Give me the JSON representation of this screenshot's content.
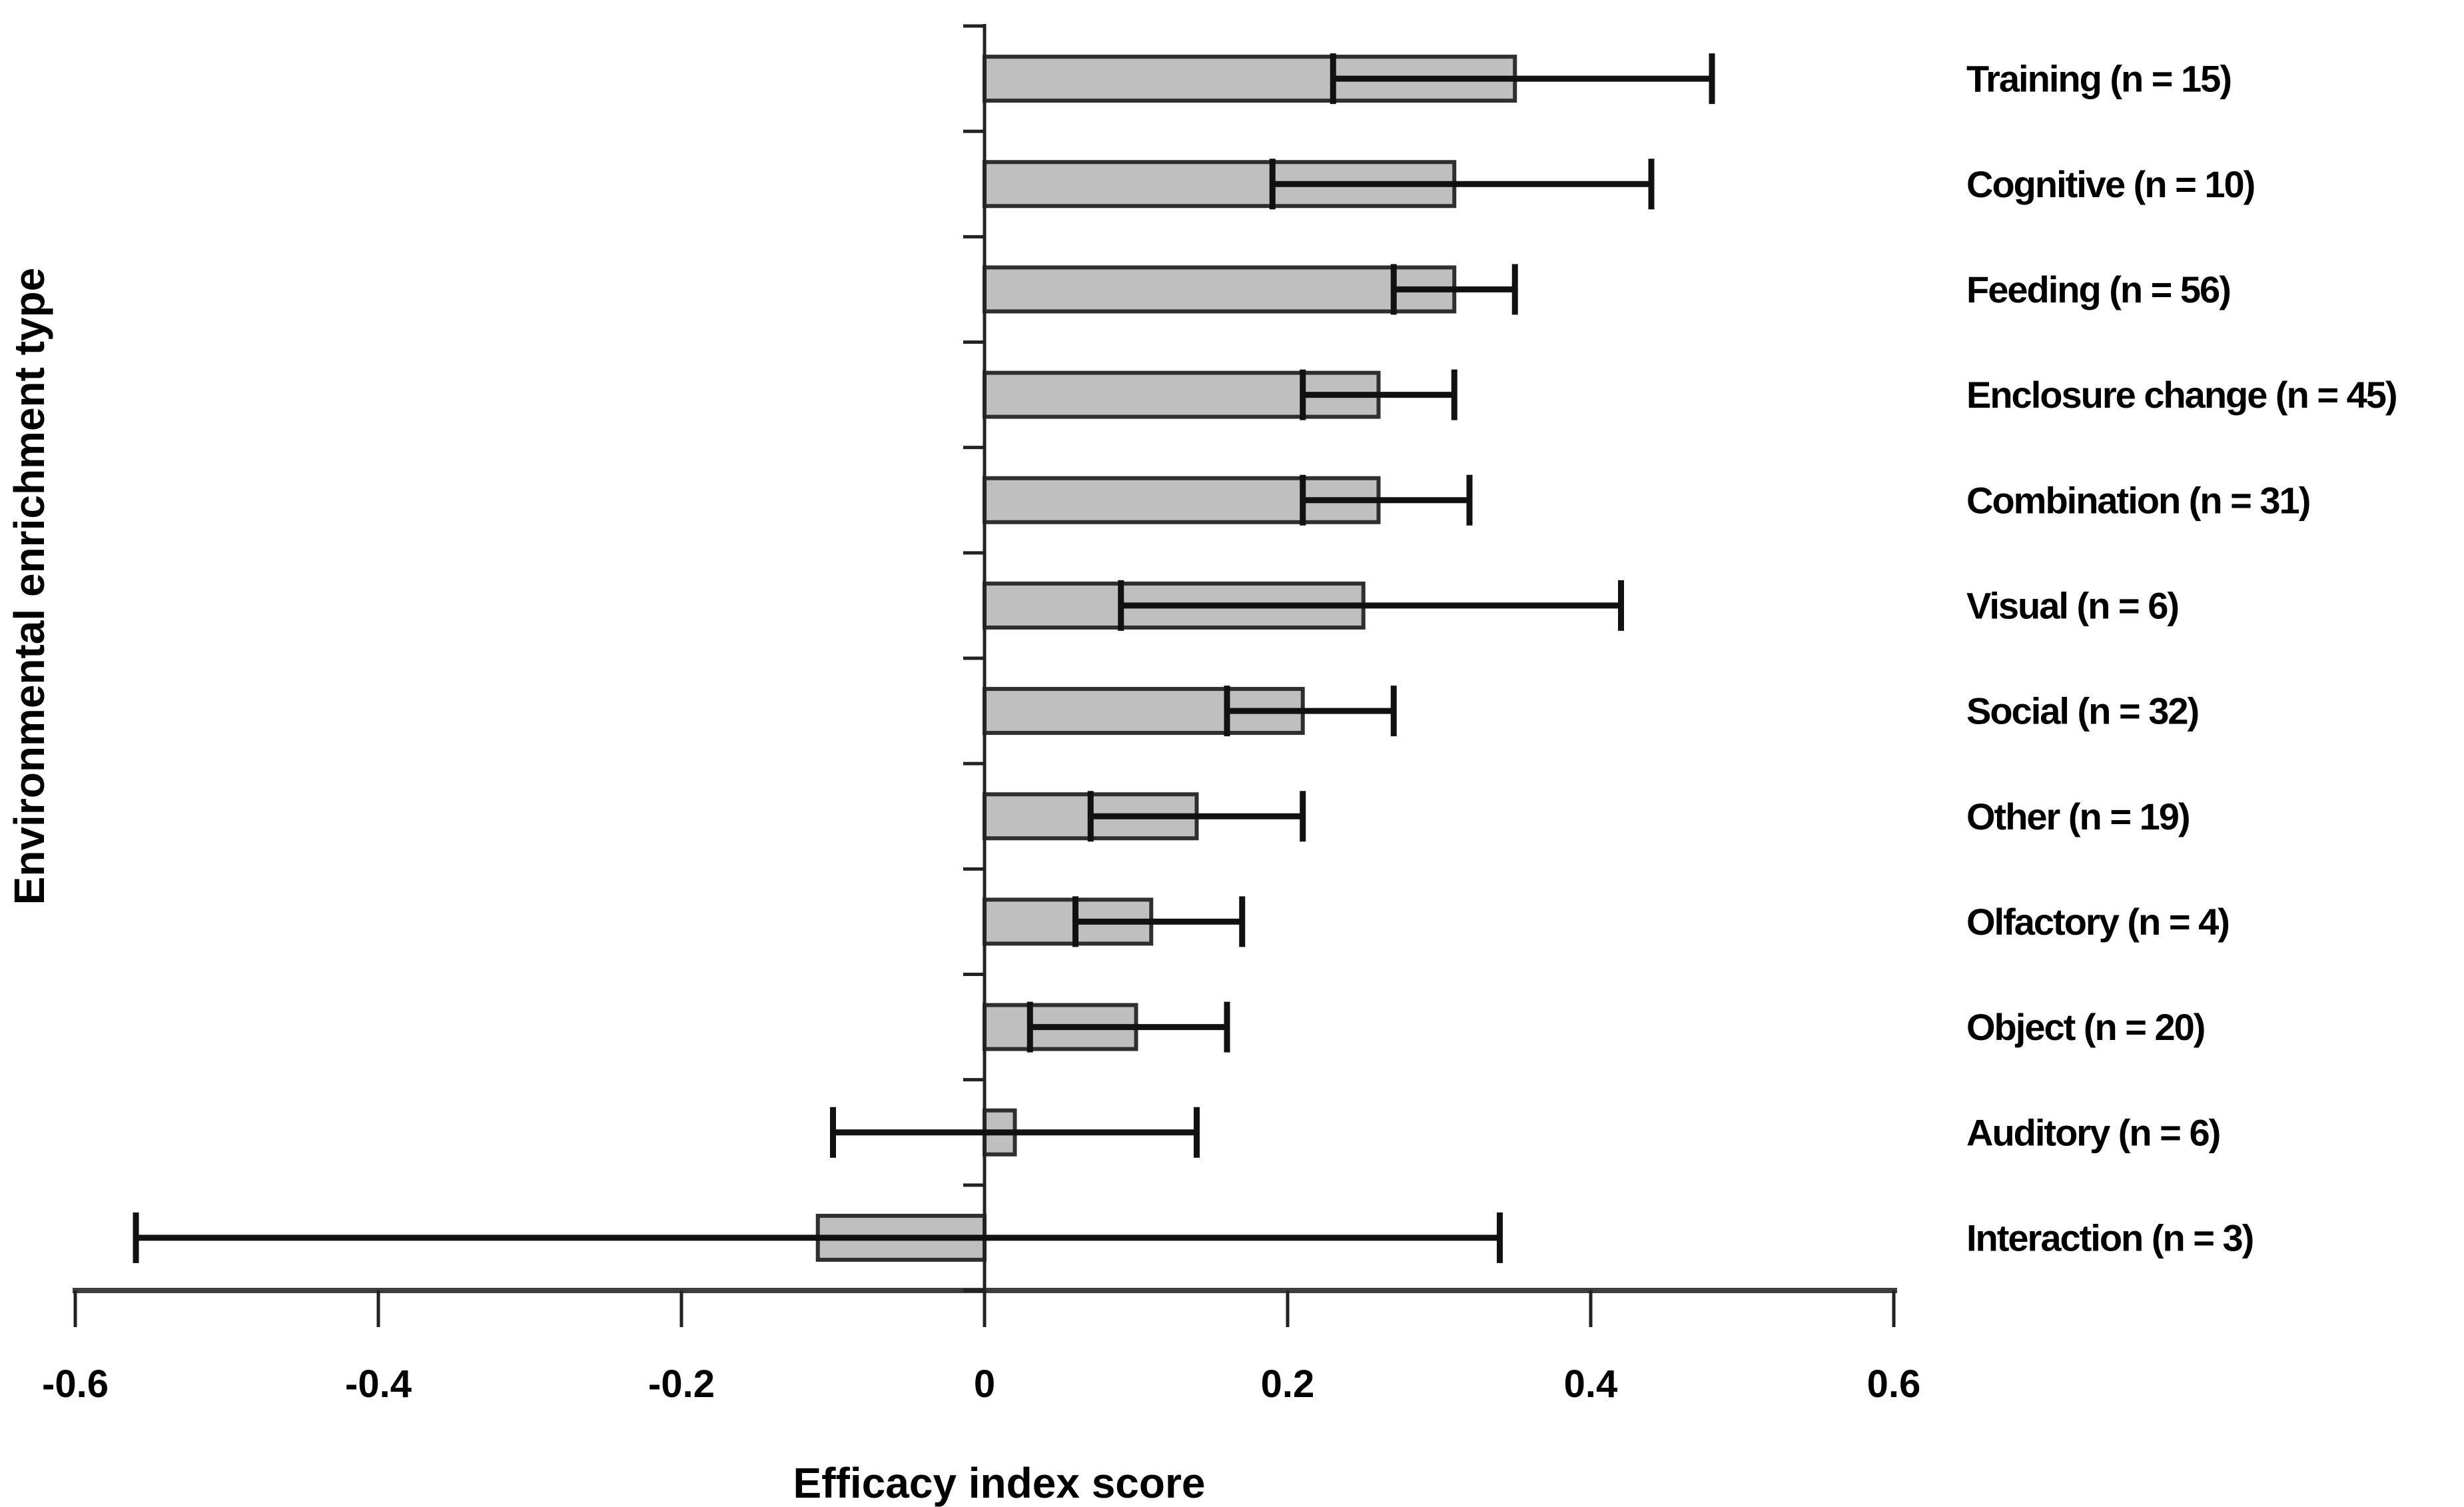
{
  "figure": {
    "background": "#ffffff",
    "xlabel": "Efficacy index score",
    "ylabel": "Environmental enrichment type"
  },
  "chart_data": {
    "type": "bar",
    "orientation": "horizontal",
    "title": "",
    "xlabel": "Efficacy index score",
    "ylabel": "Environmental enrichment type",
    "xlim": [
      -0.6,
      0.6
    ],
    "xticks": [
      -0.6,
      -0.4,
      -0.2,
      0,
      0.2,
      0.4,
      0.6
    ],
    "xtick_labels": [
      "-0.6",
      "-0.4",
      "-0.2",
      "0",
      "0.2",
      "0.4",
      "0.6"
    ],
    "grid": false,
    "legend": "none",
    "bar_color": "#bfbfbf",
    "bar_border_color": "#2f2f2f",
    "error_bar_color": "#111111",
    "axis_color": "#3d3d3d",
    "categories": [
      "Training (n = 15)",
      "Cognitive (n = 10)",
      "Feeding (n = 56)",
      "Enclosure change (n = 45)",
      "Combination (n = 31)",
      "Visual (n = 6)",
      "Social (n = 32)",
      "Other (n = 19)",
      "Olfactory (n = 4)",
      "Object (n = 20)",
      "Auditory (n = 6)",
      "Interaction (n = 3)"
    ],
    "n": [
      15,
      10,
      56,
      45,
      31,
      6,
      32,
      19,
      4,
      20,
      6,
      3
    ],
    "values": [
      0.35,
      0.31,
      0.31,
      0.26,
      0.26,
      0.25,
      0.21,
      0.14,
      0.11,
      0.1,
      0.02,
      -0.11
    ],
    "error_low": [
      0.23,
      0.19,
      0.27,
      0.21,
      0.21,
      0.09,
      0.16,
      0.07,
      0.06,
      0.03,
      -0.1,
      -0.56
    ],
    "error_high": [
      0.48,
      0.44,
      0.35,
      0.31,
      0.32,
      0.42,
      0.27,
      0.21,
      0.17,
      0.16,
      0.14,
      0.34
    ]
  }
}
